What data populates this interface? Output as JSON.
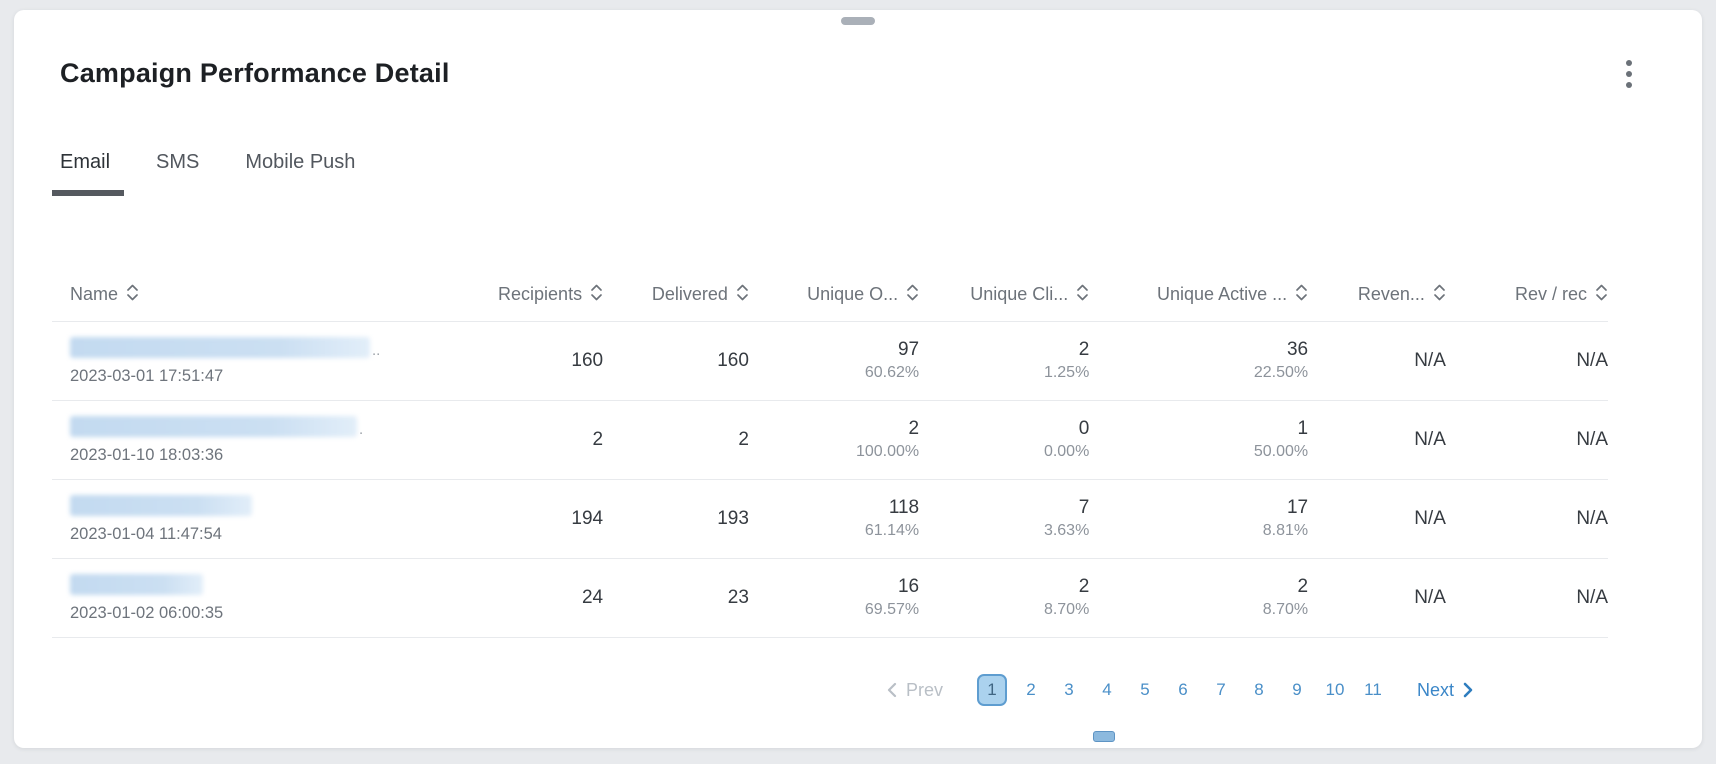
{
  "panel": {
    "title": "Campaign Performance Detail",
    "tabs": [
      {
        "label": "Email",
        "active": true
      },
      {
        "label": "SMS",
        "active": false
      },
      {
        "label": "Mobile Push",
        "active": false
      }
    ]
  },
  "table": {
    "columns": [
      {
        "key": "name",
        "label": "Name",
        "align": "left",
        "sortable": true
      },
      {
        "key": "recipients",
        "label": "Recipients",
        "align": "right",
        "sortable": true
      },
      {
        "key": "delivered",
        "label": "Delivered",
        "align": "right",
        "sortable": true
      },
      {
        "key": "unique_opens",
        "label": "Unique O...",
        "align": "right",
        "sortable": true,
        "pct_key": "unique_opens_pct"
      },
      {
        "key": "unique_clicks",
        "label": "Unique Cli...",
        "align": "right",
        "sortable": true,
        "pct_key": "unique_clicks_pct"
      },
      {
        "key": "unique_active",
        "label": "Unique Active ...",
        "align": "right",
        "sortable": true,
        "pct_key": "unique_active_pct"
      },
      {
        "key": "revenue",
        "label": "Reven...",
        "align": "right",
        "sortable": true
      },
      {
        "key": "rev_per_recipient",
        "label": "Rev / rec",
        "align": "right",
        "sortable": true
      }
    ],
    "rows": [
      {
        "name_redacted": true,
        "name_blur_width": 300,
        "name_suffix": "..",
        "date": "2023-03-01 17:51:47",
        "recipients": "160",
        "delivered": "160",
        "unique_opens": "97",
        "unique_opens_pct": "60.62%",
        "unique_clicks": "2",
        "unique_clicks_pct": "1.25%",
        "unique_active": "36",
        "unique_active_pct": "22.50%",
        "revenue": "N/A",
        "rev_per_recipient": "N/A"
      },
      {
        "name_redacted": true,
        "name_blur_width": 287,
        "name_suffix": ".",
        "date": "2023-01-10 18:03:36",
        "recipients": "2",
        "delivered": "2",
        "unique_opens": "2",
        "unique_opens_pct": "100.00%",
        "unique_clicks": "0",
        "unique_clicks_pct": "0.00%",
        "unique_active": "1",
        "unique_active_pct": "50.00%",
        "revenue": "N/A",
        "rev_per_recipient": "N/A"
      },
      {
        "name_redacted": true,
        "name_blur_width": 182,
        "name_suffix": "",
        "date": "2023-01-04 11:47:54",
        "recipients": "194",
        "delivered": "193",
        "unique_opens": "118",
        "unique_opens_pct": "61.14%",
        "unique_clicks": "7",
        "unique_clicks_pct": "3.63%",
        "unique_active": "17",
        "unique_active_pct": "8.81%",
        "revenue": "N/A",
        "rev_per_recipient": "N/A"
      },
      {
        "name_redacted": true,
        "name_blur_width": 133,
        "name_suffix": "",
        "date": "2023-01-02 06:00:35",
        "recipients": "24",
        "delivered": "23",
        "unique_opens": "16",
        "unique_opens_pct": "69.57%",
        "unique_clicks": "2",
        "unique_clicks_pct": "8.70%",
        "unique_active": "2",
        "unique_active_pct": "8.70%",
        "revenue": "N/A",
        "rev_per_recipient": "N/A"
      }
    ]
  },
  "pagination": {
    "prev_label": "Prev",
    "next_label": "Next",
    "pages": [
      "1",
      "2",
      "3",
      "4",
      "5",
      "6",
      "7",
      "8",
      "9",
      "10",
      "11"
    ],
    "active_page": "1"
  },
  "colors": {
    "accent_blue": "#4a8fc8",
    "active_page_bg": "#abd2ee",
    "active_page_border": "#5e9dd0",
    "tab_underline": "#55595f",
    "redacted_name_bar": "#c3daf0",
    "background": "#e8eaed"
  }
}
